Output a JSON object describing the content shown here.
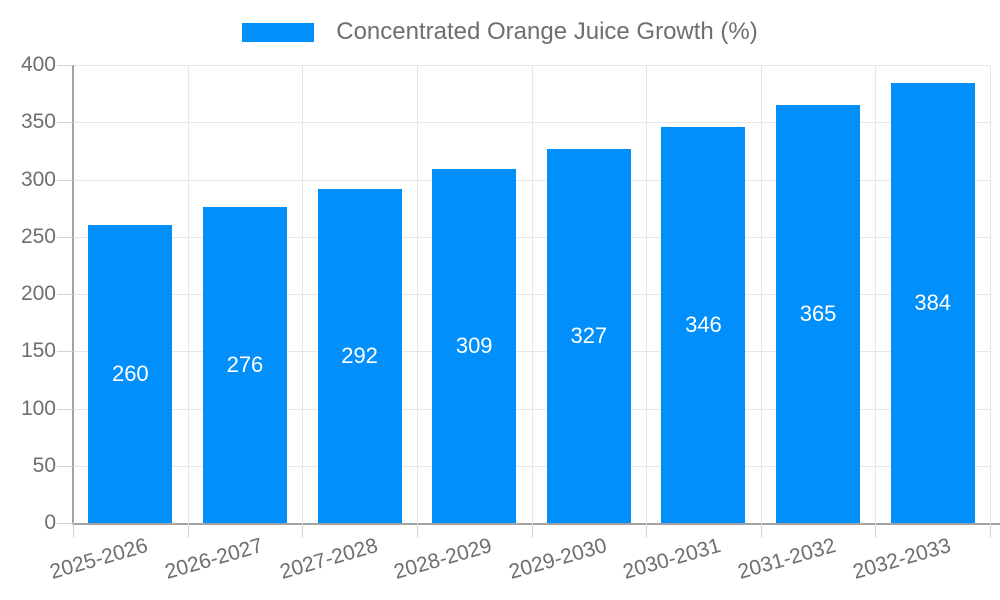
{
  "legend": {
    "label": "Concentrated Orange Juice Growth (%)",
    "swatch_color": "#008FFB"
  },
  "chart_data": {
    "type": "bar",
    "title": "",
    "xlabel": "",
    "ylabel": "",
    "series_name": "Concentrated Orange Juice Growth (%)",
    "categories": [
      "2025-2026",
      "2026-2027",
      "2027-2028",
      "2028-2029",
      "2029-2030",
      "2030-2031",
      "2031-2032",
      "2032-2033"
    ],
    "values": [
      260,
      276,
      292,
      309,
      327,
      346,
      365,
      384
    ],
    "data_labels": [
      "260",
      "276",
      "292",
      "309",
      "327",
      "346",
      "365",
      "384"
    ],
    "ylim": [
      0,
      400
    ],
    "ytick_step": 50,
    "yticks": [
      "0",
      "50",
      "100",
      "150",
      "200",
      "250",
      "300",
      "350",
      "400"
    ],
    "grid": "both",
    "legend_position": "top",
    "bar_color": "#008FFB",
    "data_label_color": "#ffffff"
  },
  "colors": {
    "bar": "#008FFB",
    "axis_text": "#6e6e73",
    "axis_line": "#a2a2a2",
    "gridline": "#e7e7e7",
    "tick": "#d4d4d4",
    "background": "#ffffff"
  }
}
